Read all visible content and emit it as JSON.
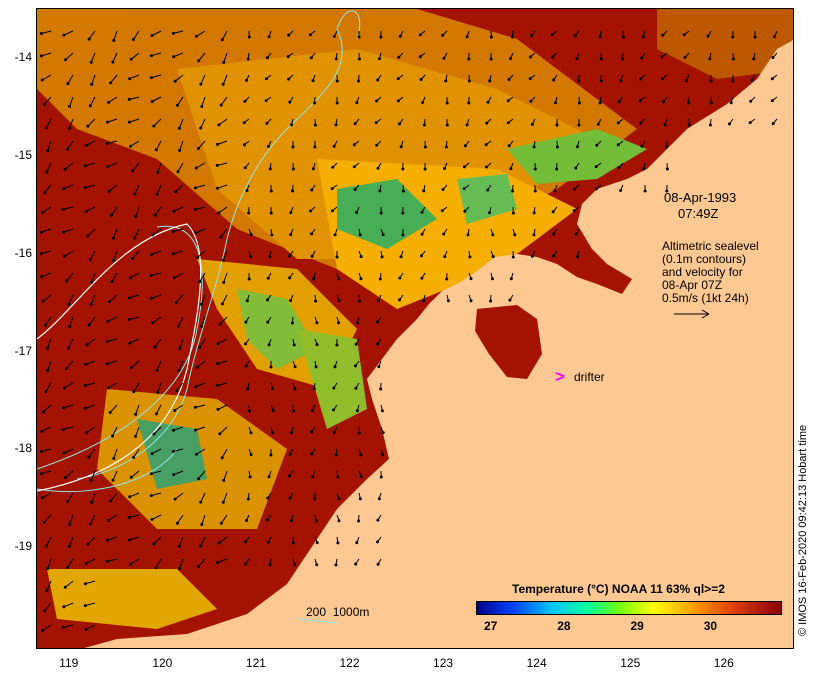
{
  "map": {
    "y_ticks": [
      {
        "label": "-14",
        "value": -14
      },
      {
        "label": "-15",
        "value": -15
      },
      {
        "label": "-16",
        "value": -16
      },
      {
        "label": "-17",
        "value": -17
      },
      {
        "label": "-18",
        "value": -18
      },
      {
        "label": "-19",
        "value": -19
      }
    ],
    "x_ticks": [
      {
        "label": "119",
        "value": 119
      },
      {
        "label": "120",
        "value": 120
      },
      {
        "label": "121",
        "value": 121
      },
      {
        "label": "122",
        "value": 122
      },
      {
        "label": "123",
        "value": 123
      },
      {
        "label": "124",
        "value": 124
      },
      {
        "label": "125",
        "value": 125
      },
      {
        "label": "126",
        "value": 126
      }
    ],
    "lon_range": [
      118.65,
      126.75
    ],
    "lat_range": [
      -20.05,
      -13.5
    ],
    "land_color": "#fdc892",
    "ocean_color": "#a41200"
  },
  "annotations": {
    "date": "08-Apr-1993",
    "time": "07:49Z",
    "altimetry_text": "Altimetric sealevel\n(0.1m contours)\nand velocity for\n08-Apr 07Z\n0.5m/s (1kt 24h)",
    "drifter_symbol": ">",
    "drifter_label": "drifter",
    "scale_label": "200  1000m"
  },
  "colorbar": {
    "title": "Temperature (°C) NOAA 11 63% ql>=2",
    "ticks": [
      {
        "label": "27",
        "value": 27
      },
      {
        "label": "28",
        "value": 28
      },
      {
        "label": "29",
        "value": 29
      },
      {
        "label": "30",
        "value": 30
      }
    ],
    "range": [
      26.8,
      30.95
    ]
  },
  "credit": "© IMOS 16-Feb-2020 09:42:13 Hobart time"
}
